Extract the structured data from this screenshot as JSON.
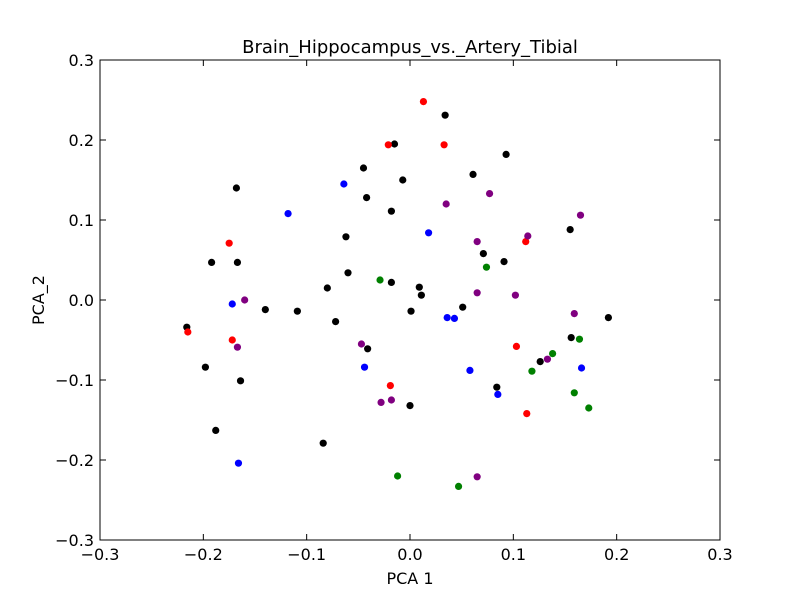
{
  "chart_data": {
    "type": "scatter",
    "title": "Brain_Hippocampus_vs._Artery_Tibial",
    "xlabel": "PCA 1",
    "ylabel": "PCA_2",
    "xlim": [
      -0.3,
      0.3
    ],
    "ylim": [
      -0.3,
      0.3
    ],
    "xticks": [
      -0.3,
      -0.2,
      -0.1,
      0.0,
      0.1,
      0.2,
      0.3
    ],
    "yticks": [
      -0.3,
      -0.2,
      -0.1,
      0.0,
      0.1,
      0.2,
      0.3
    ],
    "xtick_labels": [
      "−0.3",
      "−0.2",
      "−0.1",
      "0.0",
      "0.1",
      "0.2",
      "0.3"
    ],
    "ytick_labels": [
      "−0.3",
      "−0.2",
      "−0.1",
      "0.0",
      "0.1",
      "0.2",
      "0.3"
    ],
    "grid": false,
    "series": [
      {
        "color": "#000000",
        "points": [
          [
            0.034,
            0.231
          ],
          [
            -0.015,
            0.195
          ],
          [
            0.093,
            0.182
          ],
          [
            -0.045,
            0.165
          ],
          [
            0.061,
            0.157
          ],
          [
            -0.007,
            0.15
          ],
          [
            -0.168,
            0.14
          ],
          [
            -0.042,
            0.128
          ],
          [
            -0.018,
            0.111
          ],
          [
            0.155,
            0.088
          ],
          [
            -0.062,
            0.079
          ],
          [
            0.071,
            0.058
          ],
          [
            -0.192,
            0.047
          ],
          [
            -0.167,
            0.047
          ],
          [
            0.091,
            0.048
          ],
          [
            -0.06,
            0.034
          ],
          [
            -0.018,
            0.022
          ],
          [
            0.009,
            0.016
          ],
          [
            -0.08,
            0.015
          ],
          [
            0.011,
            0.006
          ],
          [
            0.051,
            -0.009
          ],
          [
            -0.14,
            -0.012
          ],
          [
            -0.109,
            -0.014
          ],
          [
            0.001,
            -0.014
          ],
          [
            0.192,
            -0.022
          ],
          [
            -0.072,
            -0.027
          ],
          [
            -0.216,
            -0.034
          ],
          [
            0.156,
            -0.047
          ],
          [
            -0.041,
            -0.061
          ],
          [
            0.126,
            -0.077
          ],
          [
            -0.198,
            -0.084
          ],
          [
            -0.164,
            -0.101
          ],
          [
            0.084,
            -0.109
          ],
          [
            0.0,
            -0.132
          ],
          [
            -0.188,
            -0.163
          ],
          [
            -0.084,
            -0.179
          ]
        ]
      },
      {
        "color": "#ff0000",
        "points": [
          [
            0.013,
            0.248
          ],
          [
            -0.021,
            0.194
          ],
          [
            0.033,
            0.194
          ],
          [
            -0.175,
            0.071
          ],
          [
            0.112,
            0.073
          ],
          [
            -0.215,
            -0.04
          ],
          [
            -0.172,
            -0.05
          ],
          [
            0.103,
            -0.058
          ],
          [
            -0.019,
            -0.107
          ],
          [
            0.113,
            -0.142
          ]
        ]
      },
      {
        "color": "#0000ff",
        "points": [
          [
            -0.064,
            0.145
          ],
          [
            -0.118,
            0.108
          ],
          [
            0.018,
            0.084
          ],
          [
            -0.172,
            -0.005
          ],
          [
            0.036,
            -0.022
          ],
          [
            0.043,
            -0.023
          ],
          [
            -0.044,
            -0.084
          ],
          [
            0.058,
            -0.088
          ],
          [
            0.166,
            -0.085
          ],
          [
            0.085,
            -0.118
          ],
          [
            -0.166,
            -0.204
          ]
        ]
      },
      {
        "color": "#800080",
        "points": [
          [
            0.077,
            0.133
          ],
          [
            0.035,
            0.12
          ],
          [
            0.165,
            0.106
          ],
          [
            0.114,
            0.08
          ],
          [
            0.065,
            0.073
          ],
          [
            -0.16,
            0.0
          ],
          [
            0.065,
            0.009
          ],
          [
            0.102,
            0.006
          ],
          [
            0.159,
            -0.017
          ],
          [
            -0.167,
            -0.059
          ],
          [
            -0.047,
            -0.055
          ],
          [
            0.133,
            -0.074
          ],
          [
            -0.018,
            -0.125
          ],
          [
            -0.028,
            -0.128
          ],
          [
            0.065,
            -0.221
          ]
        ]
      },
      {
        "color": "#008000",
        "points": [
          [
            -0.029,
            0.025
          ],
          [
            0.074,
            0.041
          ],
          [
            0.164,
            -0.049
          ],
          [
            0.138,
            -0.067
          ],
          [
            0.118,
            -0.089
          ],
          [
            0.159,
            -0.116
          ],
          [
            0.173,
            -0.135
          ],
          [
            -0.012,
            -0.22
          ],
          [
            0.047,
            -0.233
          ]
        ]
      }
    ]
  }
}
